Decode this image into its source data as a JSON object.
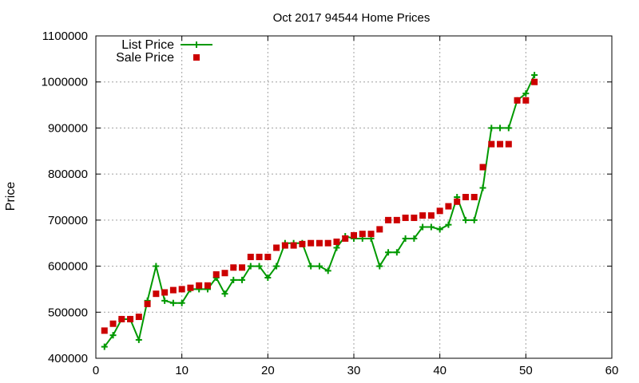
{
  "chart_data": {
    "type": "line",
    "title": "Oct 2017 94544 Home Prices",
    "xlabel": "",
    "ylabel": "Price",
    "xlim": [
      0,
      60
    ],
    "ylim": [
      400000,
      1100000
    ],
    "x_ticks": [
      0,
      10,
      20,
      30,
      40,
      50,
      60
    ],
    "y_ticks": [
      400000,
      500000,
      600000,
      700000,
      800000,
      900000,
      1000000,
      1100000
    ],
    "grid": true,
    "legend_placement": "top-left",
    "series": [
      {
        "name": "List Price",
        "style": "line-plus",
        "color": "#009900",
        "x": [
          1,
          2,
          3,
          4,
          5,
          6,
          7,
          8,
          9,
          10,
          11,
          12,
          13,
          14,
          15,
          16,
          17,
          18,
          19,
          20,
          21,
          22,
          23,
          24,
          25,
          26,
          27,
          28,
          29,
          30,
          31,
          32,
          33,
          34,
          35,
          36,
          37,
          38,
          39,
          40,
          41,
          42,
          43,
          44,
          45,
          46,
          47,
          48,
          49,
          50,
          51
        ],
        "values": [
          425000,
          450000,
          485000,
          485000,
          440000,
          525000,
          600000,
          525000,
          520000,
          520000,
          550000,
          550000,
          550000,
          575000,
          540000,
          570000,
          570000,
          600000,
          600000,
          575000,
          600000,
          650000,
          650000,
          650000,
          600000,
          600000,
          590000,
          640000,
          665000,
          660000,
          660000,
          660000,
          600000,
          630000,
          630000,
          660000,
          660000,
          685000,
          685000,
          680000,
          690000,
          750000,
          700000,
          700000,
          770000,
          900000,
          900000,
          900000,
          960000,
          975000,
          1015000
        ]
      },
      {
        "name": "Sale Price",
        "style": "square-markers",
        "color": "#cc0000",
        "x": [
          1,
          2,
          3,
          4,
          5,
          6,
          7,
          8,
          9,
          10,
          11,
          12,
          13,
          14,
          15,
          16,
          17,
          18,
          19,
          20,
          21,
          22,
          23,
          24,
          25,
          26,
          27,
          28,
          29,
          30,
          31,
          32,
          33,
          34,
          35,
          36,
          37,
          38,
          39,
          40,
          41,
          42,
          43,
          44,
          45,
          46,
          47,
          48,
          49,
          50,
          51
        ],
        "values": [
          460000,
          475000,
          485000,
          485000,
          490000,
          518000,
          540000,
          543000,
          548000,
          550000,
          553000,
          558000,
          558000,
          582000,
          585000,
          597000,
          597000,
          620000,
          620000,
          620000,
          640000,
          645000,
          645000,
          648000,
          650000,
          650000,
          650000,
          653000,
          660000,
          667000,
          670000,
          670000,
          680000,
          700000,
          700000,
          705000,
          705000,
          710000,
          710000,
          720000,
          730000,
          740000,
          750000,
          750000,
          815000,
          865000,
          865000,
          865000,
          960000,
          960000,
          1000000
        ]
      }
    ]
  }
}
